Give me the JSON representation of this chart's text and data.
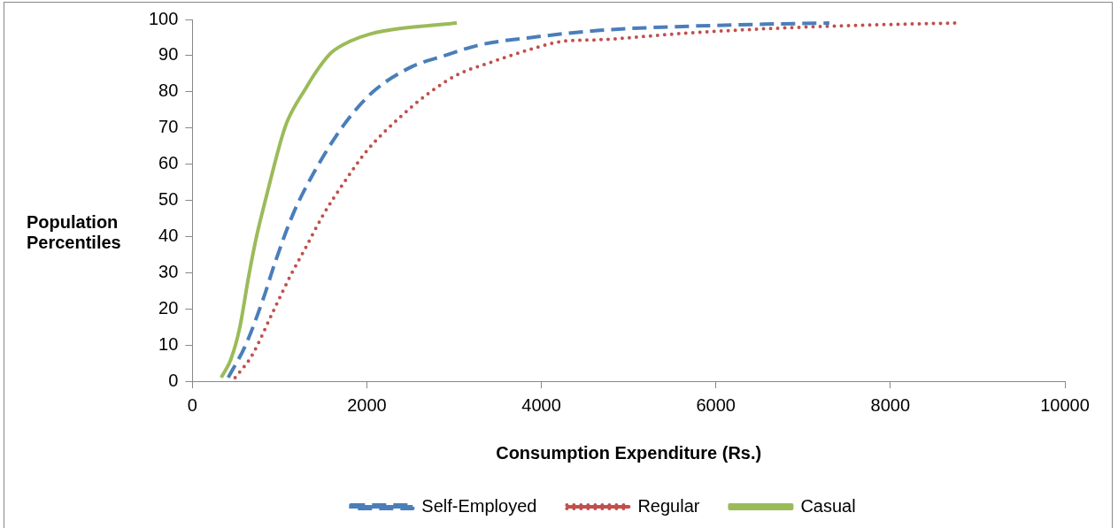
{
  "chart_data": {
    "type": "line",
    "xlabel": "Consumption Expenditure (Rs.)",
    "ylabel": "Population Percentiles",
    "xlim": [
      0,
      10000
    ],
    "xticks": [
      0,
      2000,
      4000,
      6000,
      8000,
      10000
    ],
    "ylim": [
      0,
      100
    ],
    "yticks": [
      0,
      10,
      20,
      30,
      40,
      50,
      60,
      70,
      80,
      90,
      100
    ],
    "grid": false,
    "legend": "bottom",
    "marker": "none",
    "series": [
      {
        "name": "Self-Employed",
        "color": "#4a7ebb",
        "line_style": "dashed",
        "x": [
          410,
          610,
          815,
          950,
          1150,
          1400,
          1740,
          2070,
          2520,
          2890,
          3300,
          3880,
          4670,
          5540,
          6560,
          7300
        ],
        "values": [
          1,
          10,
          23,
          33,
          46,
          58,
          71,
          80,
          87,
          90,
          93,
          95,
          97,
          98,
          98.7,
          99
        ]
      },
      {
        "name": "Regular",
        "color": "#c0504d",
        "line_style": "dotted",
        "x": [
          490,
          680,
          920,
          1120,
          1300,
          1500,
          1740,
          2010,
          2380,
          2730,
          3060,
          3400,
          3910,
          4260,
          4670,
          5650,
          6630,
          7810,
          8750
        ],
        "values": [
          1,
          7,
          19,
          29,
          37,
          46,
          55,
          64,
          73,
          80,
          85,
          88,
          92,
          94,
          94.4,
          96.2,
          97.5,
          98.5,
          99
        ]
      },
      {
        "name": "Casual",
        "color": "#9bbb59",
        "line_style": "solid",
        "x": [
          330,
          440,
          540,
          645,
          735,
          815,
          920,
          1020,
          1090,
          1300,
          1460,
          1600,
          1810,
          2040,
          2380,
          3030
        ],
        "values": [
          1,
          6,
          14.5,
          29,
          40,
          48,
          58,
          67,
          72,
          81,
          87,
          91,
          94,
          96,
          97.5,
          99
        ]
      }
    ]
  }
}
